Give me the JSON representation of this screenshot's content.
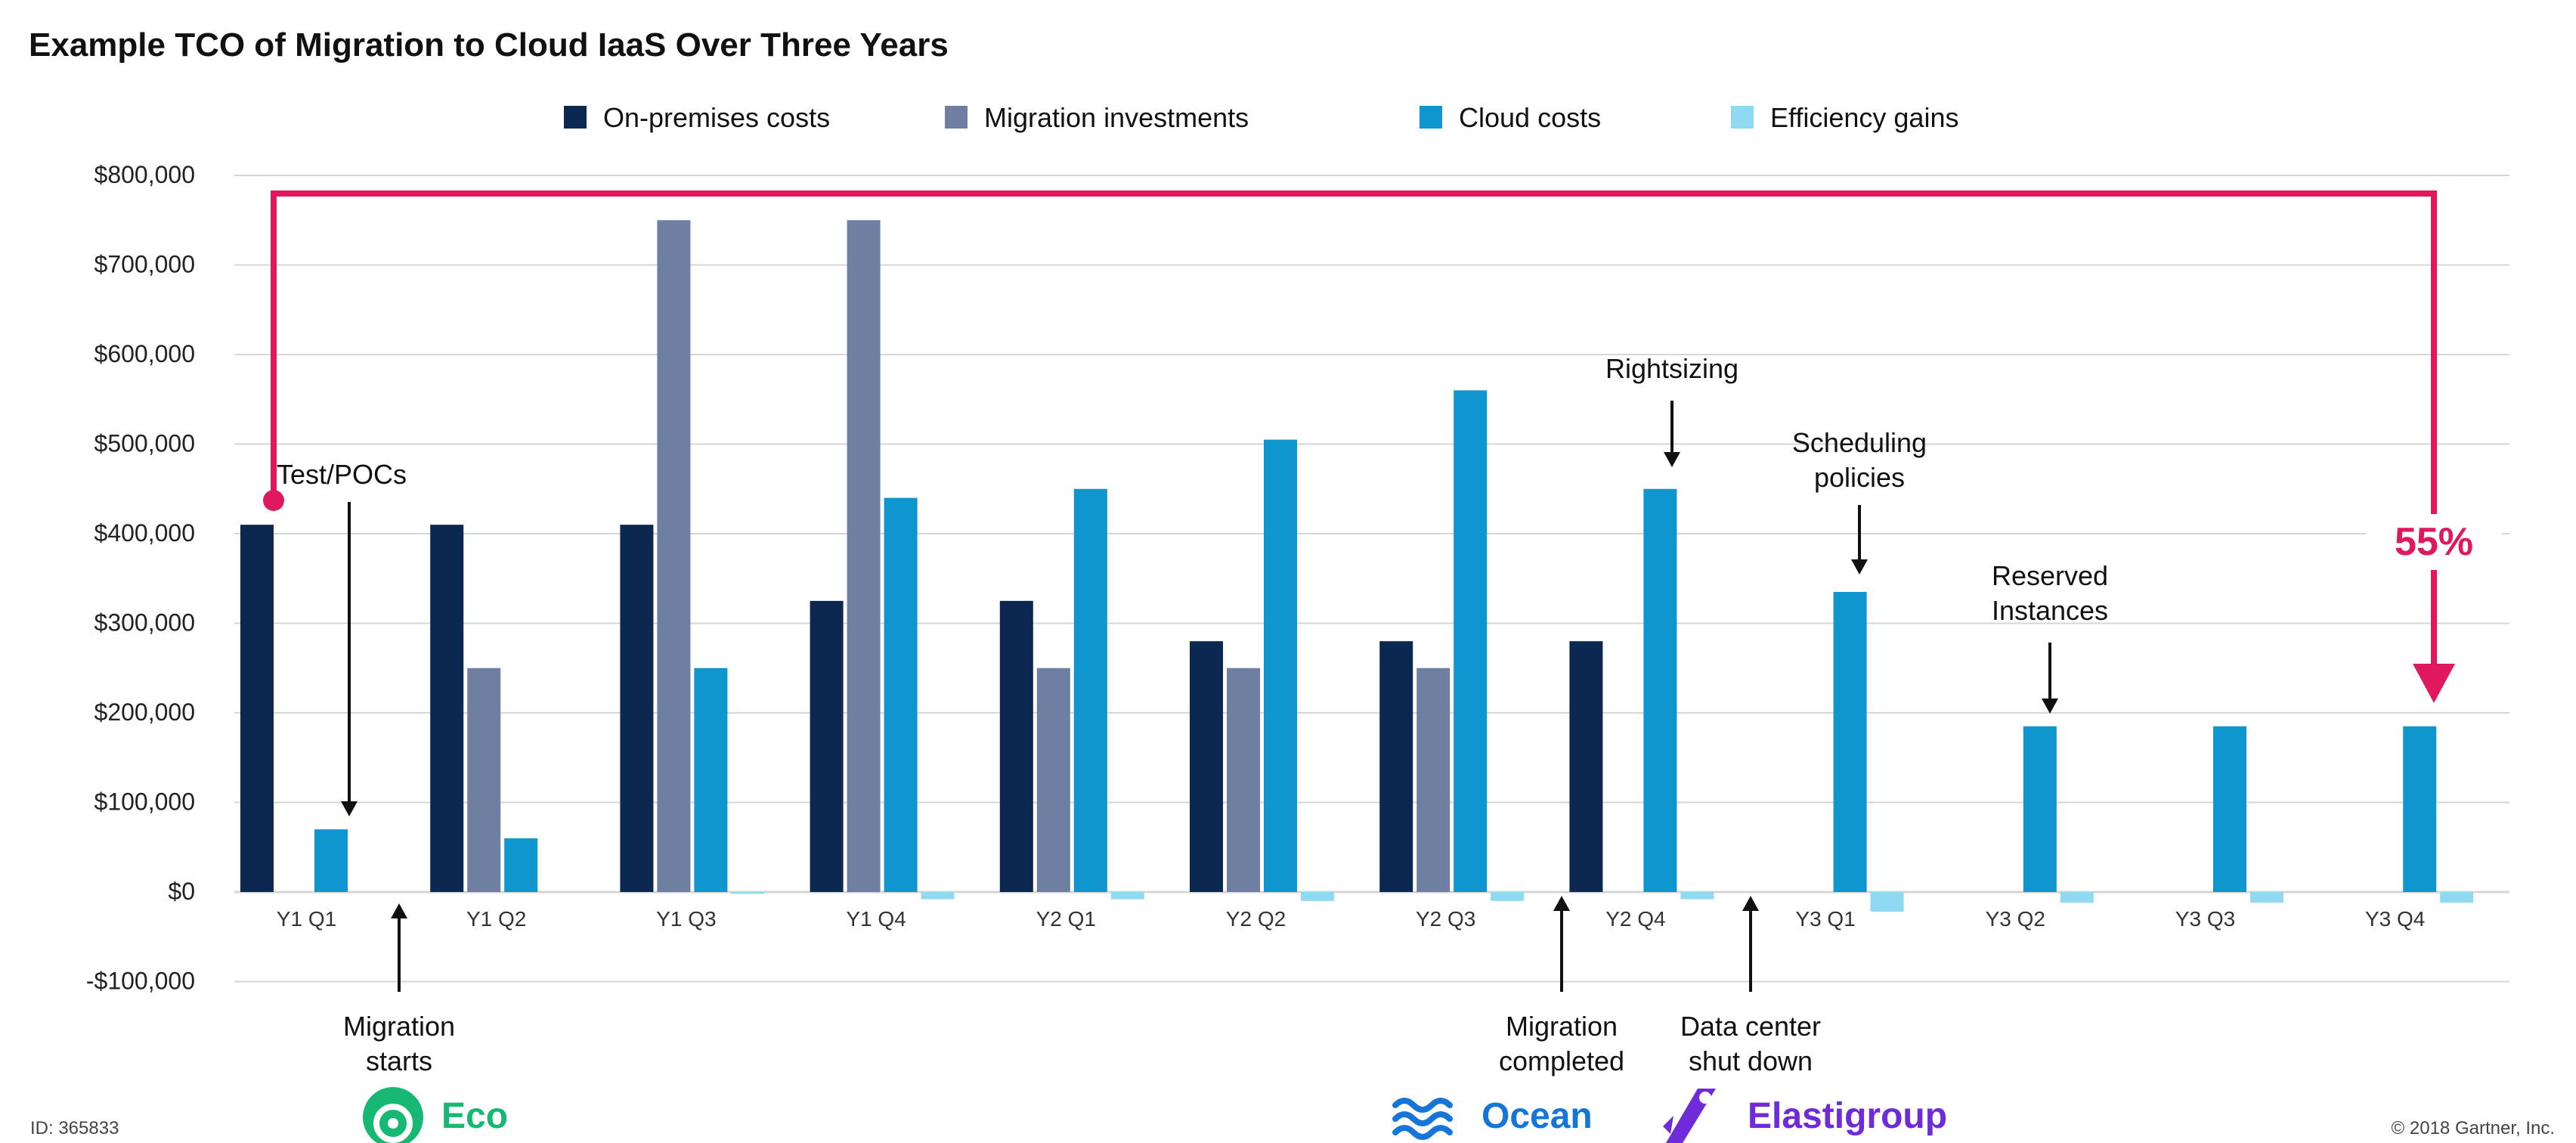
{
  "page": {
    "footer_id": "ID: 365833",
    "footer_copyright": "© 2018 Gartner, Inc."
  },
  "colors": {
    "on_premises": "#0b2850",
    "migration": "#6f7fa1",
    "cloud": "#0f96cf",
    "efficiency": "#8fd9f2",
    "highlight": "#e0195f",
    "grid": "#d6d6d6"
  },
  "logos": [
    {
      "label": "Eco",
      "icon": "eco-logo-icon",
      "color": "#16b873"
    },
    {
      "label": "Ocean",
      "icon": "ocean-wave-icon",
      "color": "#1576d8"
    },
    {
      "label": "Elastigroup",
      "icon": "elastigroup-rocket-icon",
      "color": "#6f2bd9"
    }
  ],
  "chart_data": {
    "type": "bar",
    "title": "Example TCO of Migration to Cloud IaaS Over Three Years",
    "xlabel": "",
    "ylabel": "",
    "ylim": [
      -100000,
      800000
    ],
    "yticks": [
      800000,
      700000,
      600000,
      500000,
      400000,
      300000,
      200000,
      100000,
      0,
      -100000
    ],
    "ytick_labels": [
      "$800,000",
      "$700,000",
      "$600,000",
      "$500,000",
      "$400,000",
      "$300,000",
      "$200,000",
      "$100,000",
      "$0",
      "-$100,000"
    ],
    "grid": true,
    "legend_position": "top-center",
    "categories": [
      "Y1 Q1",
      "Y1 Q2",
      "Y1 Q3",
      "Y1 Q4",
      "Y2 Q1",
      "Y2 Q2",
      "Y2 Q3",
      "Y2 Q4",
      "Y3 Q1",
      "Y3 Q2",
      "Y3 Q3",
      "Y3 Q4"
    ],
    "series": [
      {
        "name": "On-premises costs",
        "color": "#0b2850",
        "values": [
          410000,
          410000,
          410000,
          325000,
          325000,
          280000,
          280000,
          280000,
          0,
          0,
          0,
          0
        ]
      },
      {
        "name": "Migration investments",
        "color": "#6f7fa1",
        "values": [
          0,
          250000,
          750000,
          750000,
          250000,
          250000,
          250000,
          0,
          0,
          0,
          0,
          0
        ]
      },
      {
        "name": "Cloud costs",
        "color": "#0f96cf",
        "values": [
          70000,
          60000,
          250000,
          440000,
          450000,
          505000,
          560000,
          450000,
          335000,
          185000,
          185000,
          185000
        ]
      },
      {
        "name": "Efficiency gains",
        "color": "#8fd9f2",
        "values": [
          0,
          0,
          -2000,
          -8000,
          -8000,
          -10000,
          -10000,
          -8000,
          -22000,
          -12000,
          -12000,
          -12000
        ]
      }
    ],
    "annotations": [
      {
        "id": "test-pocs",
        "lines": [
          "Test/POCs"
        ]
      },
      {
        "id": "migration-starts",
        "lines": [
          "Migration",
          "starts"
        ]
      },
      {
        "id": "rightsizing",
        "lines": [
          "Rightsizing"
        ]
      },
      {
        "id": "scheduling",
        "lines": [
          "Scheduling",
          "policies"
        ]
      },
      {
        "id": "reserved",
        "lines": [
          "Reserved",
          "Instances"
        ]
      },
      {
        "id": "migration-completed",
        "lines": [
          "Migration",
          "completed"
        ]
      },
      {
        "id": "datacenter",
        "lines": [
          "Data center",
          "shut down"
        ]
      }
    ],
    "savings_callout": "55%"
  }
}
